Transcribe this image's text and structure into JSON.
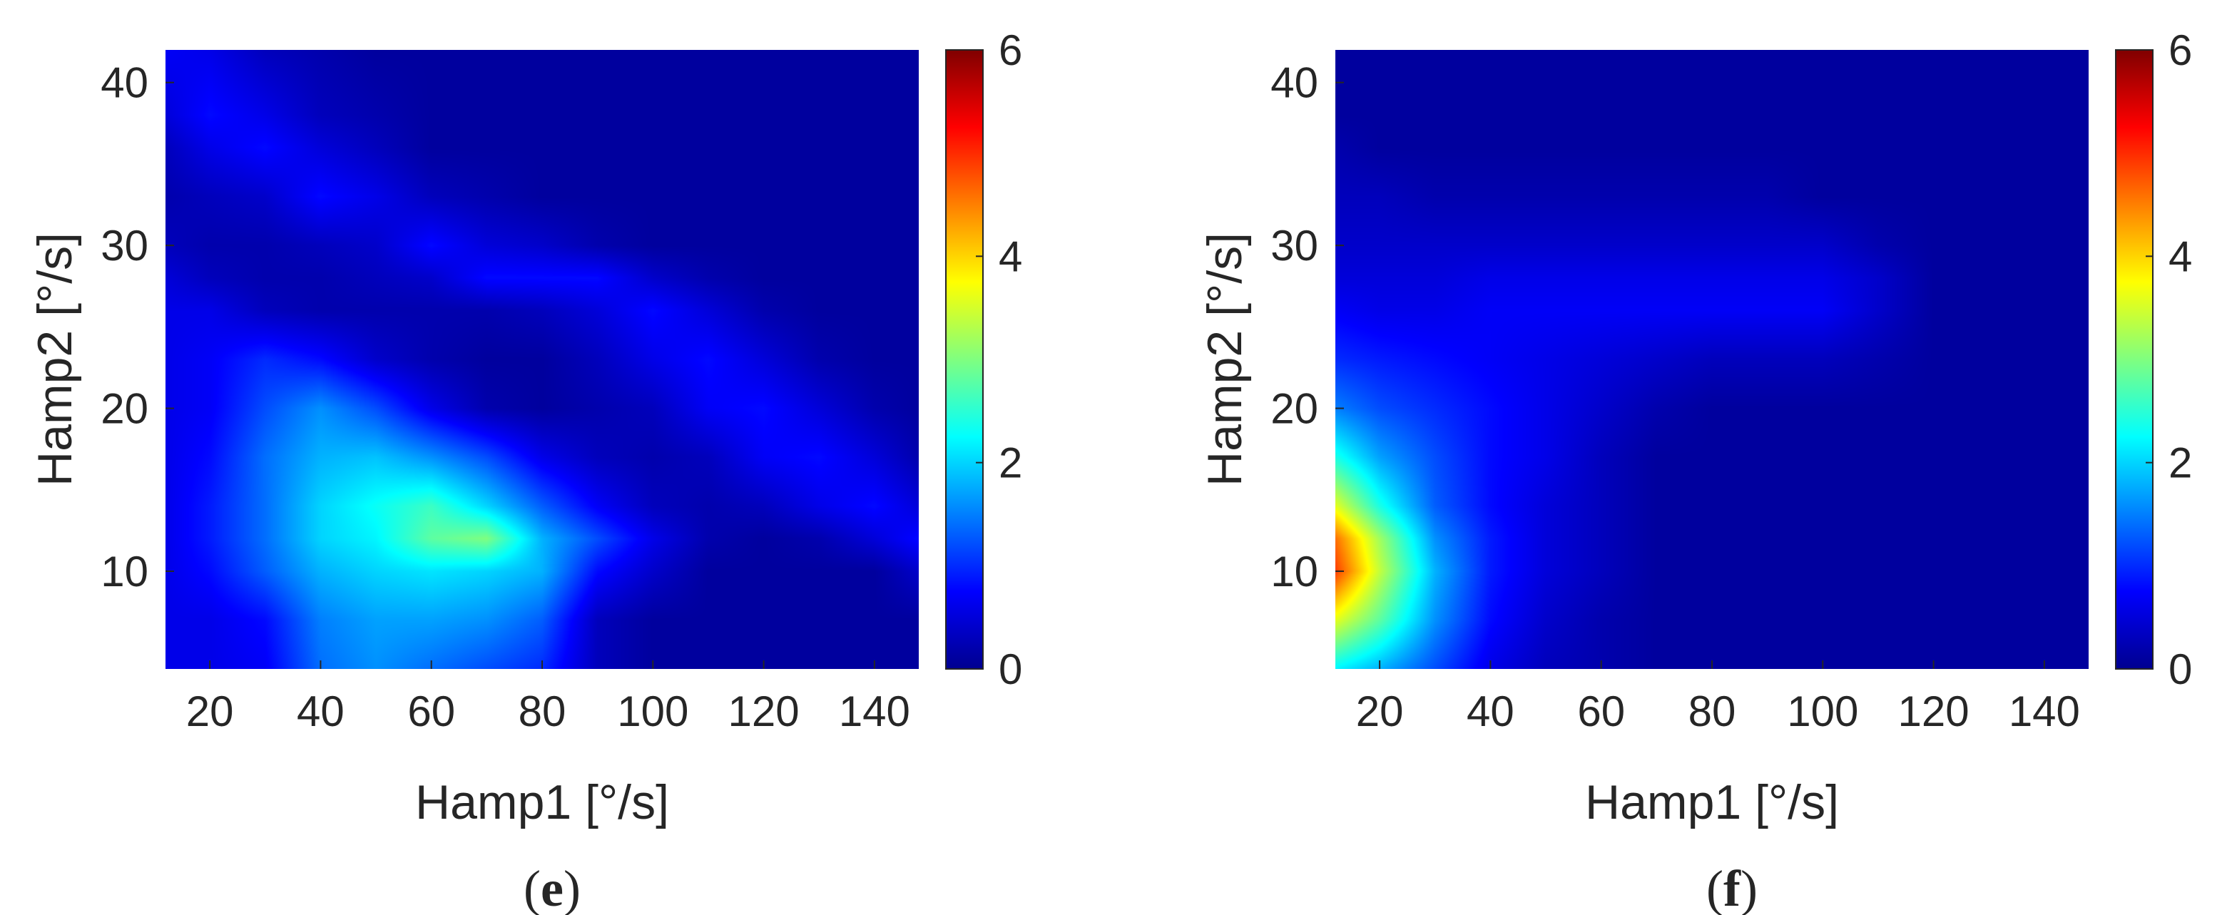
{
  "colors": {
    "jet": [
      "#00008f",
      "#0000ff",
      "#00ffff",
      "#ffff00",
      "#ff0000",
      "#800000"
    ],
    "axis": "#262626"
  },
  "chart_data": [
    {
      "type": "heatmap",
      "panel_label": "e",
      "xlabel": "Hamp1 [°/s]",
      "ylabel": "Hamp2 [°/s]",
      "xlim": [
        12,
        148
      ],
      "ylim": [
        4,
        42
      ],
      "xticks": [
        20,
        40,
        60,
        80,
        100,
        120,
        140
      ],
      "yticks": [
        10,
        20,
        30,
        40
      ],
      "colorbar": {
        "min": 0,
        "max": 6,
        "ticks": [
          0,
          2,
          4,
          6
        ]
      },
      "x": [
        12,
        20,
        30,
        40,
        50,
        60,
        70,
        80,
        90,
        100,
        110,
        120,
        130,
        140,
        148
      ],
      "y": [
        4,
        7,
        10,
        12,
        14,
        17,
        20,
        23,
        26,
        28,
        30,
        33,
        36,
        38,
        42
      ],
      "z": [
        [
          0.6,
          0.6,
          0.7,
          1.4,
          1.6,
          1.4,
          1.2,
          1.0,
          0.3,
          0.1,
          0.1,
          0.1,
          0.1,
          0.1,
          0.1
        ],
        [
          0.6,
          0.6,
          0.8,
          1.5,
          1.7,
          1.7,
          1.6,
          1.3,
          0.3,
          0.1,
          0.1,
          0.1,
          0.1,
          0.1,
          0.1
        ],
        [
          0.6,
          0.8,
          1.3,
          1.8,
          2.0,
          2.1,
          2.0,
          1.8,
          0.8,
          0.4,
          0.1,
          0.1,
          0.1,
          0.1,
          0.4
        ],
        [
          0.6,
          0.9,
          1.4,
          2.0,
          2.2,
          2.8,
          3.0,
          1.8,
          1.2,
          0.6,
          0.2,
          0.1,
          0.2,
          0.5,
          0.8
        ],
        [
          0.6,
          0.9,
          1.4,
          2.0,
          2.3,
          2.6,
          2.0,
          1.3,
          0.7,
          0.3,
          0.2,
          0.3,
          0.6,
          0.8,
          0.5
        ],
        [
          0.6,
          0.8,
          1.4,
          1.8,
          1.9,
          1.6,
          1.2,
          0.6,
          0.3,
          0.2,
          0.3,
          0.7,
          0.8,
          0.5,
          0.2
        ],
        [
          0.6,
          0.7,
          1.2,
          1.6,
          1.2,
          0.6,
          0.2,
          0.1,
          0.2,
          0.3,
          0.7,
          0.8,
          0.5,
          0.2,
          0.1
        ],
        [
          0.6,
          0.7,
          1.0,
          0.8,
          0.4,
          0.2,
          0.1,
          0.1,
          0.3,
          0.6,
          0.8,
          0.5,
          0.2,
          0.1,
          0.1
        ],
        [
          0.6,
          0.6,
          0.3,
          0.2,
          0.2,
          0.2,
          0.2,
          0.3,
          0.5,
          0.8,
          0.5,
          0.2,
          0.1,
          0.1,
          0.1
        ],
        [
          0.5,
          0.3,
          0.2,
          0.2,
          0.3,
          0.4,
          0.8,
          0.8,
          0.8,
          0.4,
          0.2,
          0.1,
          0.1,
          0.1,
          0.1
        ],
        [
          0.3,
          0.2,
          0.2,
          0.3,
          0.4,
          0.8,
          0.5,
          0.4,
          0.2,
          0.1,
          0.1,
          0.1,
          0.1,
          0.1,
          0.1
        ],
        [
          0.2,
          0.3,
          0.4,
          0.8,
          0.6,
          0.3,
          0.2,
          0.1,
          0.1,
          0.1,
          0.1,
          0.1,
          0.1,
          0.1,
          0.1
        ],
        [
          0.3,
          0.6,
          0.8,
          0.5,
          0.3,
          0.1,
          0.1,
          0.1,
          0.1,
          0.1,
          0.1,
          0.1,
          0.1,
          0.1,
          0.1
        ],
        [
          0.5,
          0.8,
          0.6,
          0.3,
          0.2,
          0.1,
          0.1,
          0.1,
          0.1,
          0.1,
          0.1,
          0.1,
          0.1,
          0.1,
          0.1
        ],
        [
          0.7,
          0.6,
          0.3,
          0.2,
          0.1,
          0.1,
          0.1,
          0.1,
          0.1,
          0.1,
          0.1,
          0.1,
          0.1,
          0.1,
          0.1
        ]
      ]
    },
    {
      "type": "heatmap",
      "panel_label": "f",
      "xlabel": "Hamp1 [°/s]",
      "ylabel": "Hamp2 [°/s]",
      "xlim": [
        12,
        148
      ],
      "ylim": [
        4,
        42
      ],
      "xticks": [
        20,
        40,
        60,
        80,
        100,
        120,
        140
      ],
      "yticks": [
        10,
        20,
        30,
        40
      ],
      "colorbar": {
        "min": 0,
        "max": 6,
        "ticks": [
          0,
          2,
          4,
          6
        ]
      },
      "x": [
        12,
        20,
        30,
        40,
        50,
        60,
        70,
        80,
        90,
        100,
        110,
        120,
        130,
        140,
        148
      ],
      "y": [
        4,
        7,
        10,
        12,
        14,
        17,
        20,
        23,
        26,
        28,
        30,
        33,
        36,
        38,
        42
      ],
      "z": [
        [
          2.2,
          1.8,
          1.2,
          0.6,
          0.3,
          0.2,
          0.1,
          0.1,
          0.1,
          0.1,
          0.1,
          0.1,
          0.1,
          0.1,
          0.1
        ],
        [
          3.6,
          2.8,
          1.6,
          0.8,
          0.4,
          0.2,
          0.1,
          0.1,
          0.1,
          0.1,
          0.1,
          0.1,
          0.1,
          0.1,
          0.1
        ],
        [
          4.9,
          3.4,
          1.8,
          0.9,
          0.5,
          0.3,
          0.1,
          0.1,
          0.1,
          0.1,
          0.1,
          0.1,
          0.1,
          0.1,
          0.1
        ],
        [
          4.6,
          3.2,
          1.6,
          0.9,
          0.5,
          0.3,
          0.1,
          0.1,
          0.1,
          0.1,
          0.1,
          0.1,
          0.1,
          0.1,
          0.1
        ],
        [
          3.6,
          2.4,
          1.3,
          0.8,
          0.5,
          0.3,
          0.1,
          0.1,
          0.1,
          0.1,
          0.1,
          0.1,
          0.1,
          0.1,
          0.1
        ],
        [
          2.4,
          1.7,
          1.2,
          0.8,
          0.6,
          0.3,
          0.1,
          0.1,
          0.1,
          0.1,
          0.1,
          0.1,
          0.1,
          0.1,
          0.1
        ],
        [
          1.5,
          1.2,
          1.0,
          0.8,
          0.6,
          0.4,
          0.2,
          0.1,
          0.1,
          0.1,
          0.1,
          0.1,
          0.1,
          0.1,
          0.1
        ],
        [
          1.0,
          0.9,
          0.8,
          0.7,
          0.6,
          0.5,
          0.4,
          0.3,
          0.3,
          0.3,
          0.2,
          0.1,
          0.1,
          0.1,
          0.1
        ],
        [
          0.7,
          0.6,
          0.6,
          0.7,
          0.7,
          0.7,
          0.7,
          0.7,
          0.7,
          0.7,
          0.4,
          0.1,
          0.1,
          0.1,
          0.1
        ],
        [
          0.5,
          0.5,
          0.5,
          0.6,
          0.6,
          0.6,
          0.6,
          0.6,
          0.6,
          0.6,
          0.4,
          0.1,
          0.1,
          0.1,
          0.1
        ],
        [
          0.4,
          0.4,
          0.4,
          0.4,
          0.4,
          0.4,
          0.4,
          0.4,
          0.4,
          0.4,
          0.2,
          0.1,
          0.1,
          0.1,
          0.1
        ],
        [
          0.3,
          0.3,
          0.2,
          0.2,
          0.2,
          0.2,
          0.2,
          0.2,
          0.2,
          0.1,
          0.1,
          0.1,
          0.1,
          0.1,
          0.1
        ],
        [
          0.2,
          0.1,
          0.1,
          0.1,
          0.1,
          0.1,
          0.1,
          0.1,
          0.1,
          0.1,
          0.1,
          0.1,
          0.1,
          0.1,
          0.1
        ],
        [
          0.1,
          0.1,
          0.1,
          0.1,
          0.1,
          0.1,
          0.1,
          0.1,
          0.1,
          0.1,
          0.1,
          0.1,
          0.1,
          0.1,
          0.1
        ],
        [
          0.1,
          0.1,
          0.1,
          0.1,
          0.1,
          0.1,
          0.1,
          0.1,
          0.1,
          0.1,
          0.1,
          0.1,
          0.1,
          0.1,
          0.1
        ]
      ]
    }
  ]
}
